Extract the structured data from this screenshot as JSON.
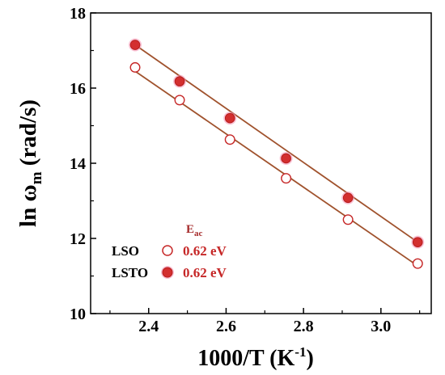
{
  "chart_data": {
    "type": "scatter",
    "xlabel": "1000/T (K",
    "xlabel_sup": "-1",
    "xlabel_close": ")",
    "ylabel_main": "ln ω",
    "ylabel_sub": "m",
    "ylabel_units": " (rad/s)",
    "xlim": [
      2.25,
      3.13
    ],
    "ylim": [
      10,
      18
    ],
    "xticks": [
      2.4,
      2.6,
      2.8,
      3.0
    ],
    "xtick_labels": [
      "2.4",
      "2.6",
      "2.8",
      "3.0"
    ],
    "yticks": [
      10,
      12,
      14,
      16,
      18
    ],
    "ytick_labels": [
      "10",
      "12",
      "14",
      "16",
      "18"
    ],
    "legend_header": "E",
    "legend_header_sub": "ac",
    "legend_position": "bottom-left",
    "series": [
      {
        "name": "LSO",
        "value_label": "0.62 eV",
        "marker": "open-circle",
        "x": [
          2.365,
          2.48,
          2.61,
          2.755,
          2.915,
          3.095
        ],
        "y": [
          16.55,
          15.68,
          14.63,
          13.6,
          12.5,
          11.33
        ],
        "fit": {
          "x": [
            2.365,
            3.095
          ],
          "y": [
            16.45,
            11.27
          ]
        }
      },
      {
        "name": "LSTO",
        "value_label": "0.62 eV",
        "marker": "filled-circle",
        "x": [
          2.365,
          2.48,
          2.61,
          2.755,
          2.915,
          3.095
        ],
        "y": [
          17.15,
          16.18,
          15.2,
          14.13,
          13.08,
          11.9
        ],
        "fit": {
          "x": [
            2.365,
            3.095
          ],
          "y": [
            17.15,
            11.9
          ]
        }
      }
    ],
    "colors": {
      "marker_edge": "#c62828",
      "filled_marker": "#d32f2f",
      "filled_halo": "#f48fb1",
      "fit_line": "#a0522d",
      "axis": "#000000"
    }
  }
}
